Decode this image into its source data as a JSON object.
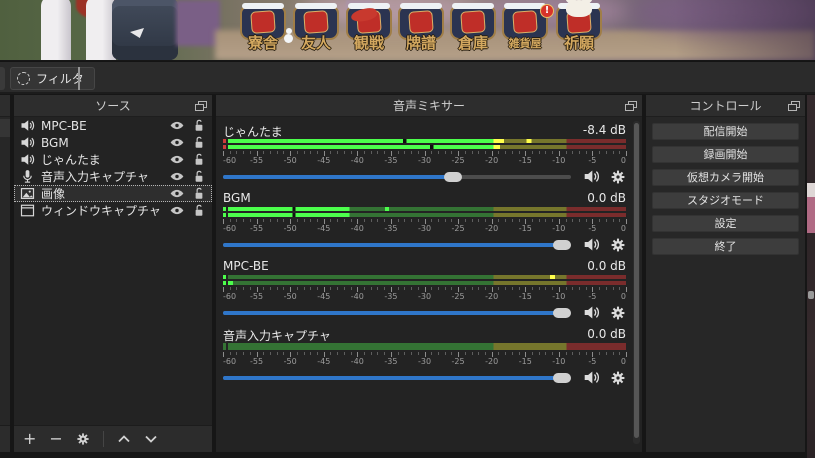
{
  "preview": {
    "menu_badges": [
      {
        "label": "寮舎",
        "icon": "snowman"
      },
      {
        "label": "友人"
      },
      {
        "label": "観戦",
        "icon": "koinobori"
      },
      {
        "label": "牌譜"
      },
      {
        "label": "倉庫"
      },
      {
        "label": "雑貨屋",
        "notification": "!"
      },
      {
        "label": "祈願",
        "icon": "maneki-neko"
      }
    ]
  },
  "source_toolbar": {
    "filter_label": "フィルタ"
  },
  "sources": {
    "title": "ソース",
    "items": [
      {
        "icon": "speaker",
        "label": "MPC-BE",
        "visible": true,
        "locked": false,
        "selected": false
      },
      {
        "icon": "speaker",
        "label": "BGM",
        "visible": true,
        "locked": false,
        "selected": false
      },
      {
        "icon": "speaker",
        "label": "じゃんたま",
        "visible": true,
        "locked": false,
        "selected": false
      },
      {
        "icon": "microphone",
        "label": "音声入力キャプチャ",
        "visible": true,
        "locked": false,
        "selected": false
      },
      {
        "icon": "image",
        "label": "画像",
        "visible": true,
        "locked": false,
        "selected": true
      },
      {
        "icon": "window",
        "label": "ウィンドウキャプチャ",
        "visible": true,
        "locked": false,
        "selected": false
      }
    ]
  },
  "mixer": {
    "title": "音声ミキサー",
    "scale_labels": [
      -60,
      -55,
      -50,
      -45,
      -40,
      -35,
      -30,
      -25,
      -20,
      -15,
      -10,
      -5,
      0
    ],
    "channels": [
      {
        "name": "じゃんたま",
        "db": "-8.4 dB",
        "slider_pct": 66,
        "muted": false,
        "indicator": "indicator_red",
        "bars": [
          [
            [
              "bright_green",
              0,
              44
            ],
            [
              "gap",
              44,
              44.8
            ],
            [
              "bright_green",
              44.8,
              66.7
            ],
            [
              "bright_yellow",
              66.7,
              69.3
            ],
            [
              "dim_yellow",
              69.3,
              75
            ],
            [
              "bright_yellow",
              75,
              76.3
            ],
            [
              "dim_yellow",
              76.3,
              85
            ],
            [
              "dim_red",
              85,
              100
            ]
          ],
          [
            [
              "bright_green",
              0,
              50.8
            ],
            [
              "gap",
              50.8,
              51.6
            ],
            [
              "bright_green",
              51.6,
              66.7
            ],
            [
              "bright_yellow",
              66.7,
              68.3
            ],
            [
              "dim_yellow",
              68.3,
              85
            ],
            [
              "dim_red",
              85,
              100
            ]
          ]
        ]
      },
      {
        "name": "BGM",
        "db": "0.0 dB",
        "slider_pct": 98,
        "muted": false,
        "indicator": "bright_green",
        "bars": [
          [
            [
              "bright_green",
              0,
              16.2
            ],
            [
              "gap",
              16.2,
              17
            ],
            [
              "bright_green",
              17,
              30.5
            ],
            [
              "dim_green",
              30.5,
              39.5
            ],
            [
              "bright_green",
              39.5,
              40.4
            ],
            [
              "dim_green",
              40.4,
              66.7
            ],
            [
              "dim_yellow",
              66.7,
              85
            ],
            [
              "dim_red",
              85,
              100
            ]
          ],
          [
            [
              "bright_green",
              0,
              16.2
            ],
            [
              "gap",
              16.2,
              17
            ],
            [
              "bright_green",
              17,
              30.5
            ],
            [
              "dim_green",
              30.5,
              66.7
            ],
            [
              "dim_yellow",
              66.7,
              85
            ],
            [
              "dim_red",
              85,
              100
            ]
          ]
        ]
      },
      {
        "name": "MPC-BE",
        "db": "0.0 dB",
        "slider_pct": 98,
        "muted": false,
        "indicator": "bright_green",
        "bars": [
          [
            [
              "dim_green",
              0,
              66.7
            ],
            [
              "dim_yellow",
              66.7,
              80.9
            ],
            [
              "bright_yellow",
              80.9,
              82.2
            ],
            [
              "dim_yellow",
              82.2,
              85
            ],
            [
              "dim_red",
              85,
              100
            ]
          ],
          [
            [
              "bright_green",
              0,
              1.2
            ],
            [
              "dim_green",
              1.2,
              66.7
            ],
            [
              "dim_yellow",
              66.7,
              85
            ],
            [
              "dim_red",
              85,
              100
            ]
          ]
        ]
      },
      {
        "name": "音声入力キャプチャ",
        "db": "0.0 dB",
        "slider_pct": 98,
        "muted": false,
        "indicator": "dim_green",
        "bars": [
          [
            [
              "dim_green",
              0,
              66.7
            ],
            [
              "dim_yellow",
              66.7,
              85
            ],
            [
              "dim_red",
              85,
              100
            ]
          ]
        ]
      }
    ]
  },
  "controls": {
    "title": "コントロール",
    "buttons": [
      "配信開始",
      "録画開始",
      "仮想カメラ開始",
      "スタジオモード",
      "設定",
      "終了"
    ]
  },
  "colors": {
    "gap": "#0f0f0f",
    "bright_green": "#4cff4c",
    "dim_green": "#347334",
    "bright_yellow": "#ffff4c",
    "dim_yellow": "#76762c",
    "dim_red": "#7a2c2c",
    "indicator_red": "#cc3c3c",
    "slider_blue": "#2f76c9"
  }
}
